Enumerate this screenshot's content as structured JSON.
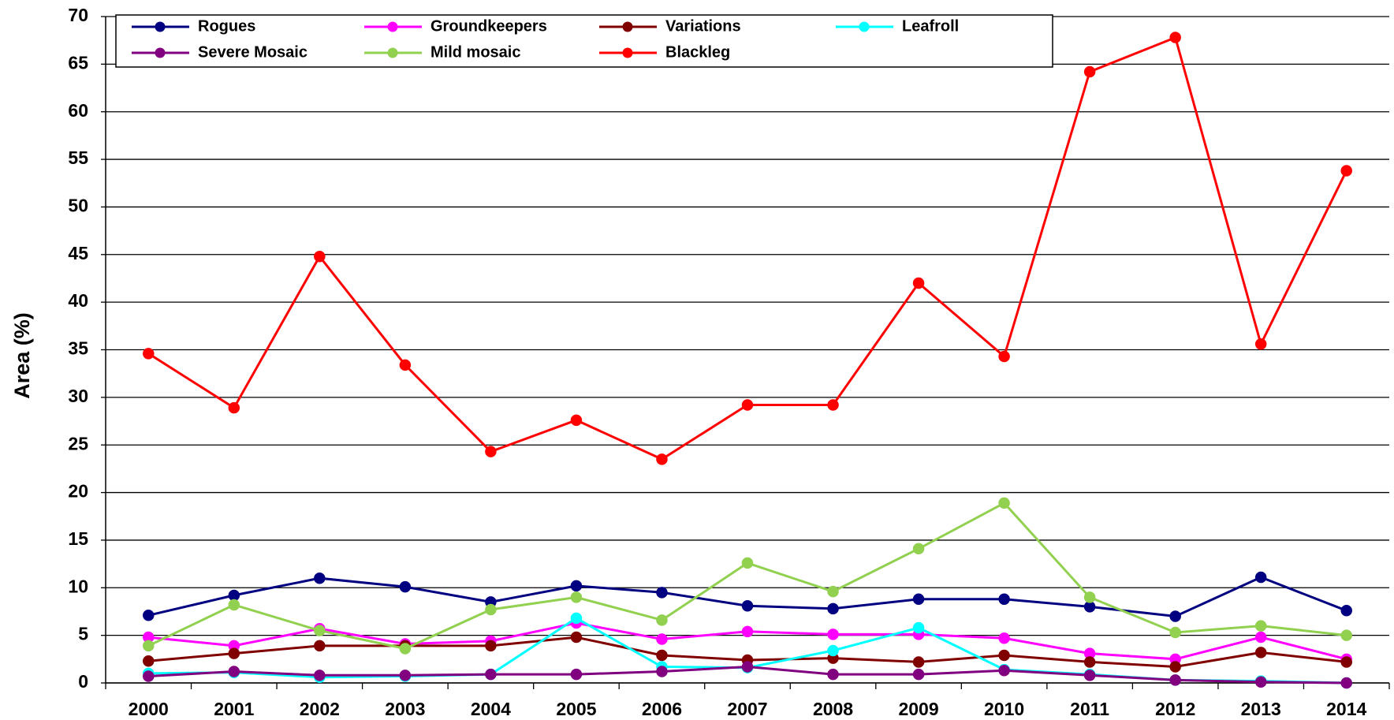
{
  "chart_data": {
    "type": "line",
    "y_label": "Area (%)",
    "categories": [
      "2000",
      "2001",
      "2002",
      "2003",
      "2004",
      "2005",
      "2006",
      "2007",
      "2008",
      "2009",
      "2010",
      "2011",
      "2012",
      "2013",
      "2014"
    ],
    "series": [
      {
        "name": "Rogues",
        "color": "#000080",
        "values": [
          7.1,
          9.2,
          11.0,
          10.1,
          8.5,
          10.2,
          9.5,
          8.1,
          7.8,
          8.8,
          8.8,
          8.0,
          7.0,
          11.1,
          7.6
        ]
      },
      {
        "name": "Groundkeepers",
        "color": "#ff00ff",
        "values": [
          4.8,
          3.9,
          5.7,
          4.1,
          4.4,
          6.3,
          4.6,
          5.4,
          5.1,
          5.1,
          4.7,
          3.1,
          2.5,
          4.8,
          2.5
        ]
      },
      {
        "name": "Variations",
        "color": "#800000",
        "values": [
          2.3,
          3.1,
          3.9,
          3.9,
          3.9,
          4.8,
          2.9,
          2.4,
          2.6,
          2.2,
          2.9,
          2.2,
          1.7,
          3.2,
          2.2
        ]
      },
      {
        "name": "Leafroll",
        "color": "#00ffff",
        "values": [
          1.0,
          1.1,
          0.6,
          0.7,
          0.9,
          6.8,
          1.7,
          1.6,
          3.4,
          5.8,
          1.4,
          0.9,
          0.3,
          0.2,
          0.0
        ]
      },
      {
        "name": "Severe Mosaic",
        "color": "#800080",
        "values": [
          0.7,
          1.2,
          0.8,
          0.8,
          0.9,
          0.9,
          1.2,
          1.7,
          0.9,
          0.9,
          1.3,
          0.8,
          0.3,
          0.1,
          0.0
        ]
      },
      {
        "name": "Mild mosaic",
        "color": "#92d050",
        "values": [
          3.9,
          8.2,
          5.5,
          3.6,
          7.7,
          9.0,
          6.6,
          12.6,
          9.6,
          14.1,
          18.9,
          9.0,
          5.3,
          6.0,
          5.0
        ]
      },
      {
        "name": "Blackleg",
        "color": "#ff0000",
        "values": [
          34.6,
          28.9,
          44.8,
          33.4,
          24.3,
          27.6,
          23.5,
          29.2,
          29.2,
          42.0,
          34.3,
          64.2,
          67.8,
          35.6,
          53.8
        ]
      }
    ],
    "ylim": [
      0,
      70
    ],
    "yticks": [
      0,
      5,
      10,
      15,
      20,
      25,
      30,
      35,
      40,
      45,
      50,
      55,
      60,
      65,
      70
    ],
    "grid": true,
    "legend": "top"
  }
}
